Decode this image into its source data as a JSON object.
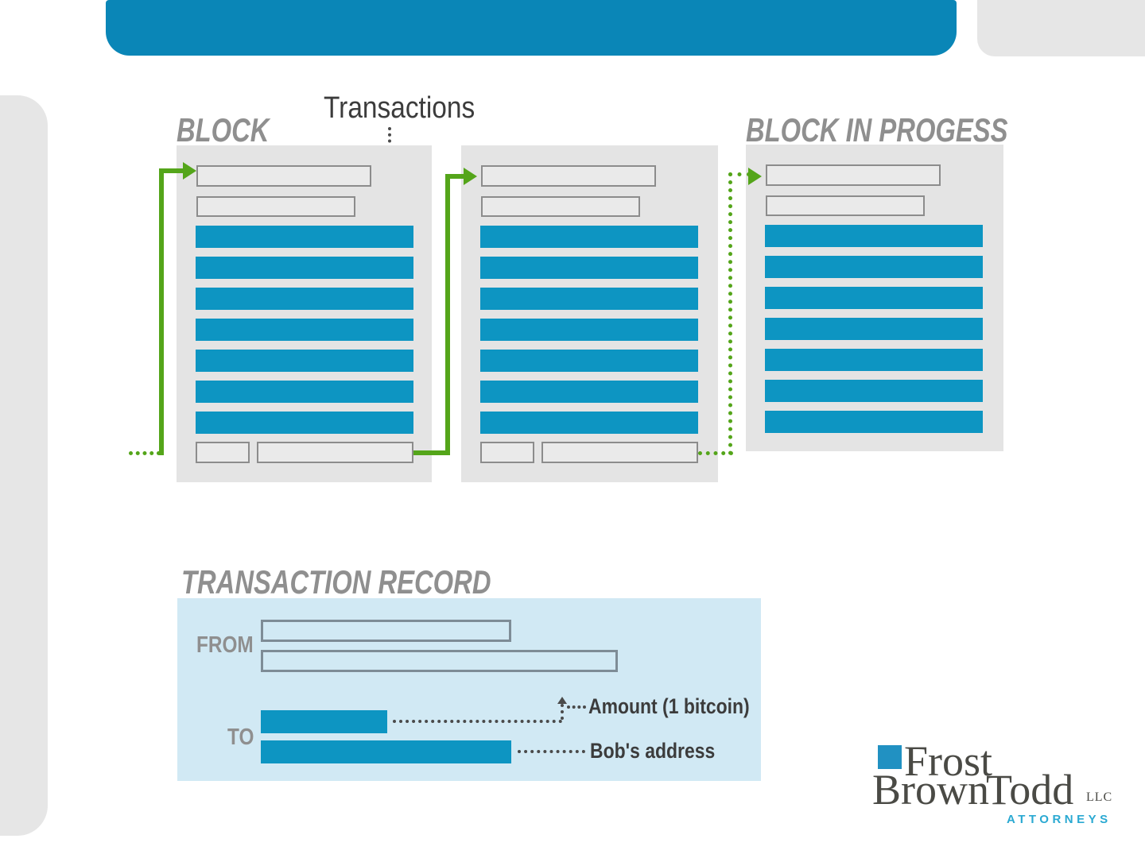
{
  "diagram": {
    "transactions_label": "Transactions",
    "blocks": [
      {
        "title": "BLOCK",
        "transaction_bars": 7,
        "header_fields": 2,
        "footer_fields": 2,
        "link_in": "solid-arrow",
        "link_out": "solid"
      },
      {
        "title": "",
        "transaction_bars": 7,
        "header_fields": 2,
        "footer_fields": 2,
        "link_in": "solid-arrow",
        "link_out": "dotted"
      },
      {
        "title": "BLOCK IN PROGESS",
        "transaction_bars": 7,
        "header_fields": 2,
        "footer_fields": 0,
        "link_in": "dotted-arrow",
        "link_out": "none"
      }
    ]
  },
  "transaction_record": {
    "title": "TRANSACTION RECORD",
    "from_label": "FROM",
    "to_label": "TO",
    "amount_callout": "Amount (1 bitcoin)",
    "address_callout": "Bob's address"
  },
  "logo": {
    "word1": "Frost",
    "word2": "Brown",
    "word3": "Todd",
    "suffix": "LLC",
    "tagline": "ATTORNEYS"
  },
  "colors": {
    "header_bar": "#0a86b7",
    "transaction_bar_blue": "#0d95c2",
    "record_panel_blue": "#d1e9f4",
    "block_panel_gray": "#e4e4e4",
    "link_green": "#54a51a",
    "heading_gray": "#8f8f8f",
    "text_dark": "#3c3c3c",
    "logo_dark": "#4a4a45",
    "logo_blue": "#2aa9d2"
  }
}
